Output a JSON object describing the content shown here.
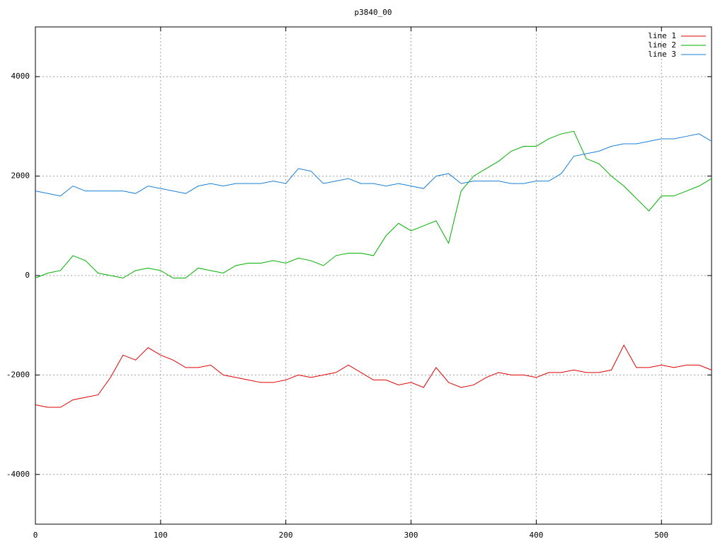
{
  "chart_data": {
    "type": "line",
    "title": "p3840_00",
    "x": [
      0,
      10,
      20,
      30,
      40,
      50,
      60,
      70,
      80,
      90,
      100,
      110,
      120,
      130,
      140,
      150,
      160,
      170,
      180,
      190,
      200,
      210,
      220,
      230,
      240,
      250,
      260,
      270,
      280,
      290,
      300,
      310,
      320,
      330,
      340,
      350,
      360,
      370,
      380,
      390,
      400,
      410,
      420,
      430,
      440,
      450,
      460,
      470,
      480,
      490,
      500,
      510,
      520,
      530,
      540
    ],
    "series": [
      {
        "name": "line 1",
        "color": "#e00000",
        "values": [
          -2600,
          -2650,
          -2650,
          -2500,
          -2450,
          -2400,
          -2050,
          -1600,
          -1700,
          -1450,
          -1600,
          -1700,
          -1850,
          -1850,
          -1800,
          -2000,
          -2050,
          -2100,
          -2150,
          -2150,
          -2100,
          -2000,
          -2050,
          -2000,
          -1950,
          -1800,
          -1950,
          -2100,
          -2100,
          -2200,
          -2150,
          -2250,
          -1850,
          -2150,
          -2250,
          -2200,
          -2050,
          -1950,
          -2000,
          -2000,
          -2050,
          -1950,
          -1950,
          -1900,
          -1950,
          -1950,
          -1900,
          -1400,
          -1850,
          -1850,
          -1800,
          -1850,
          -1800,
          -1800,
          -1900
        ]
      },
      {
        "name": "line 2",
        "color": "#00b000",
        "values": [
          -50,
          50,
          100,
          400,
          300,
          50,
          0,
          -50,
          100,
          150,
          100,
          -50,
          -50,
          150,
          100,
          50,
          200,
          250,
          250,
          300,
          250,
          350,
          300,
          200,
          400,
          450,
          450,
          400,
          800,
          1050,
          900,
          1000,
          1100,
          650,
          1700,
          2000,
          2150,
          2300,
          2500,
          2600,
          2600,
          2750,
          2850,
          2900,
          2350,
          2250,
          2000,
          1800,
          1550,
          1300,
          1600,
          1600,
          1700,
          1800,
          1950
        ]
      },
      {
        "name": "line 3",
        "color": "#1a7fd6",
        "values": [
          1700,
          1650,
          1600,
          1800,
          1700,
          1700,
          1700,
          1700,
          1650,
          1800,
          1750,
          1700,
          1650,
          1800,
          1850,
          1800,
          1850,
          1850,
          1850,
          1900,
          1850,
          2150,
          2100,
          1850,
          1900,
          1950,
          1850,
          1850,
          1800,
          1850,
          1800,
          1750,
          2000,
          2050,
          1850,
          1900,
          1900,
          1900,
          1850,
          1850,
          1900,
          1900,
          2050,
          2400,
          2450,
          2500,
          2600,
          2650,
          2650,
          2700,
          2750,
          2750,
          2800,
          2850,
          2700
        ]
      }
    ],
    "xlim": [
      0,
      540
    ],
    "xticks": [
      0,
      100,
      200,
      300,
      400,
      500
    ],
    "ylim": [
      -5000,
      5000
    ],
    "yticks": [
      -4000,
      -2000,
      0,
      2000,
      4000
    ],
    "grid": true,
    "legend": "top-right"
  }
}
